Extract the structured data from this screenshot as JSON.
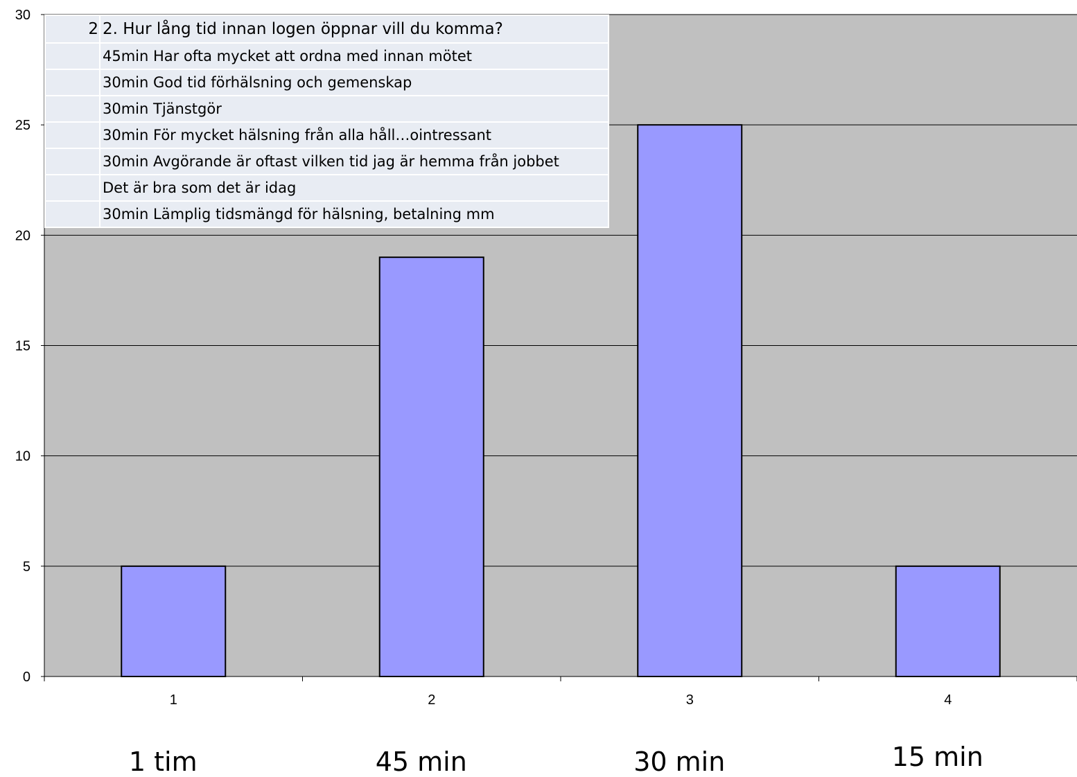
{
  "chart_data": {
    "type": "bar",
    "categories": [
      "1",
      "2",
      "3",
      "4"
    ],
    "values": [
      5,
      19,
      25,
      5
    ],
    "ylim": [
      0,
      30
    ],
    "yticks": [
      0,
      5,
      10,
      15,
      20,
      25,
      30
    ],
    "grid": true,
    "category_labels": [
      "1 tim",
      "45 min",
      "30 min",
      "15 min"
    ],
    "colors": {
      "bar_fill": "#9999ff",
      "bar_stroke": "#000000",
      "plot_background": "#c0c0c0",
      "gridline": "#000000"
    }
  },
  "comments": {
    "header_number": "2",
    "header_text": "2. Hur lång tid innan logen öppnar vill du komma?",
    "rows": [
      "45min Har ofta mycket att ordna med innan mötet",
      "30min God tid förhälsning och gemenskap",
      "30min Tjänstgör",
      "30min För mycket hälsning från alla håll…ointressant",
      "30min Avgörande är oftast vilken tid jag är hemma från jobbet",
      "Det är bra som det är idag",
      "30min Lämplig tidsmängd för hälsning, betalning mm"
    ]
  }
}
